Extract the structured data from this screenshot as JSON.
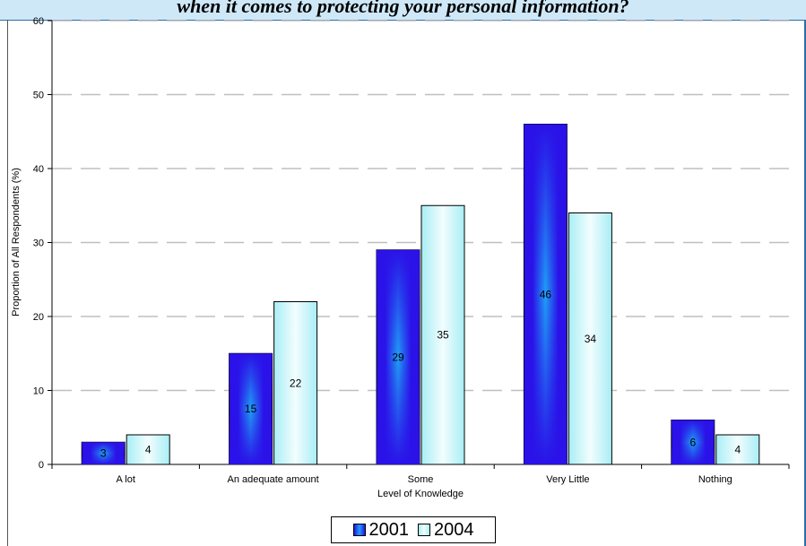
{
  "title": "when it comes to protecting your personal information?",
  "chart_data": {
    "type": "bar",
    "ylabel": "Proportion of All Respondents  (%)",
    "xlabel": "Level of Knowledge",
    "ylim": [
      0,
      60
    ],
    "yticks": [
      0,
      10,
      20,
      30,
      40,
      50,
      60
    ],
    "categories": [
      "A lot",
      "An adequate amount",
      "Some",
      "Very Little",
      "Nothing"
    ],
    "series": [
      {
        "name": "2001",
        "values": [
          3,
          15,
          29,
          46,
          6
        ],
        "color": "#2b1ef0"
      },
      {
        "name": "2004",
        "values": [
          4,
          22,
          35,
          34,
          4
        ],
        "color": "#c8f4f8"
      }
    ],
    "grid": true,
    "legend": "bottom"
  }
}
